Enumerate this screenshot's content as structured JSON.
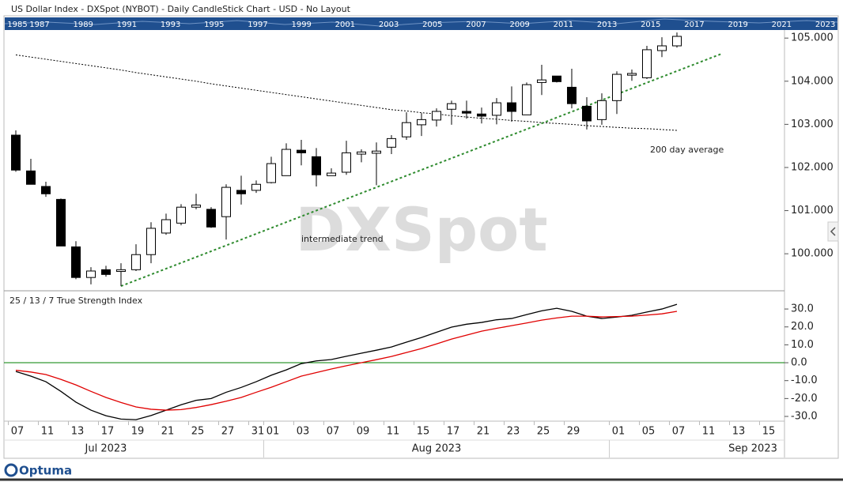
{
  "header": {
    "title": "US Dollar Index - DXSpot (NYBOT) - Daily CandleStick Chart - USD - No Layout"
  },
  "timeline_years": [
    "1985",
    "1987",
    "1989",
    "1991",
    "1993",
    "1995",
    "1997",
    "1999",
    "2001",
    "2003",
    "2005",
    "2007",
    "2009",
    "2011",
    "2013",
    "2015",
    "2017",
    "2019",
    "2021",
    "2023"
  ],
  "watermark": "DXSpot",
  "logo": "Optuma",
  "chart_data": [
    {
      "type": "candlestick",
      "categories": [
        "2023-07-07",
        "2023-07-10",
        "2023-07-11",
        "2023-07-12",
        "2023-07-13",
        "2023-07-14",
        "2023-07-17",
        "2023-07-18",
        "2023-07-19",
        "2023-07-20",
        "2023-07-21",
        "2023-07-24",
        "2023-07-25",
        "2023-07-26",
        "2023-07-27",
        "2023-07-28",
        "2023-07-31",
        "2023-08-01",
        "2023-08-02",
        "2023-08-03",
        "2023-08-04",
        "2023-08-07",
        "2023-08-08",
        "2023-08-09",
        "2023-08-10",
        "2023-08-11",
        "2023-08-14",
        "2023-08-15",
        "2023-08-16",
        "2023-08-17",
        "2023-08-18",
        "2023-08-21",
        "2023-08-22",
        "2023-08-23",
        "2023-08-24",
        "2023-08-25",
        "2023-08-28",
        "2023-08-29",
        "2023-08-30",
        "2023-08-31",
        "2023-09-01",
        "2023-09-04",
        "2023-09-05",
        "2023-09-06",
        "2023-09-07"
      ],
      "open": [
        102.75,
        101.92,
        101.56,
        101.26,
        100.16,
        99.45,
        99.63,
        99.59,
        99.63,
        99.98,
        100.48,
        100.71,
        101.08,
        101.03,
        100.86,
        101.47,
        101.47,
        101.65,
        101.81,
        102.4,
        102.25,
        101.81,
        101.89,
        102.31,
        102.33,
        102.47,
        102.71,
        102.99,
        103.1,
        103.35,
        103.3,
        103.24,
        103.21,
        103.5,
        103.22,
        103.97,
        104.12,
        103.86,
        103.42,
        103.11,
        103.55,
        104.14,
        104.08,
        104.71,
        104.82
      ],
      "high": [
        102.86,
        102.2,
        101.67,
        101.28,
        100.29,
        99.69,
        99.72,
        99.78,
        100.22,
        100.73,
        100.93,
        101.15,
        101.39,
        101.08,
        101.61,
        101.81,
        101.7,
        102.25,
        102.56,
        102.64,
        102.45,
        101.98,
        102.62,
        102.42,
        102.58,
        102.75,
        103.28,
        103.26,
        103.37,
        103.55,
        103.55,
        103.39,
        103.61,
        103.88,
        103.97,
        104.38,
        104.12,
        104.29,
        103.63,
        103.72,
        104.23,
        104.27,
        104.82,
        105.02,
        105.13
      ],
      "low": [
        101.9,
        101.61,
        101.32,
        100.18,
        99.41,
        99.29,
        99.47,
        99.25,
        99.6,
        99.78,
        100.44,
        100.66,
        101.03,
        100.6,
        100.33,
        101.14,
        101.41,
        101.63,
        101.81,
        102.05,
        101.56,
        101.81,
        101.83,
        102.12,
        101.59,
        102.31,
        102.64,
        102.73,
        102.95,
        102.99,
        103.13,
        103.02,
        103.0,
        103.06,
        103.22,
        103.68,
        103.97,
        103.37,
        102.88,
        102.99,
        103.24,
        104.01,
        104.05,
        104.56,
        104.78
      ],
      "close": [
        101.94,
        101.61,
        101.39,
        100.18,
        99.45,
        99.6,
        99.52,
        99.63,
        99.98,
        100.59,
        100.79,
        101.08,
        101.13,
        100.62,
        101.54,
        101.39,
        101.61,
        102.09,
        102.42,
        102.34,
        101.83,
        101.87,
        102.34,
        102.36,
        102.38,
        102.67,
        103.04,
        103.11,
        103.3,
        103.48,
        103.26,
        103.19,
        103.5,
        103.3,
        103.92,
        104.03,
        103.99,
        103.48,
        103.08,
        103.55,
        104.16,
        104.18,
        104.73,
        104.82,
        105.04
      ],
      "up_color": "#ffffff",
      "down_color": "#000000",
      "ylim": [
        99.16,
        105.15
      ],
      "yticks": [
        {
          "value": 100,
          "label": "100.000"
        },
        {
          "value": 101,
          "label": "101.000"
        },
        {
          "value": 102,
          "label": "102.000"
        },
        {
          "value": 103,
          "label": "103.000"
        },
        {
          "value": 104,
          "label": "104.000"
        },
        {
          "value": 105,
          "label": "105.000"
        }
      ],
      "x_ticks": [
        {
          "value": "2023-07-07",
          "label": "07"
        },
        {
          "value": "2023-07-11",
          "label": "11"
        },
        {
          "value": "2023-07-13",
          "label": "13"
        },
        {
          "value": "2023-07-17",
          "label": "17"
        },
        {
          "value": "2023-07-19",
          "label": "19"
        },
        {
          "value": "2023-07-21",
          "label": "21"
        },
        {
          "value": "2023-07-25",
          "label": "25"
        },
        {
          "value": "2023-07-27",
          "label": "27"
        },
        {
          "value": "2023-07-31",
          "label": "31"
        },
        {
          "value": "2023-08-01",
          "label": "01"
        },
        {
          "value": "2023-08-03",
          "label": "03"
        },
        {
          "value": "2023-08-07",
          "label": "07"
        },
        {
          "value": "2023-08-09",
          "label": "09"
        },
        {
          "value": "2023-08-11",
          "label": "11"
        },
        {
          "value": "2023-08-15",
          "label": "15"
        },
        {
          "value": "2023-08-17",
          "label": "17"
        },
        {
          "value": "2023-08-21",
          "label": "21"
        },
        {
          "value": "2023-08-23",
          "label": "23"
        },
        {
          "value": "2023-08-25",
          "label": "25"
        },
        {
          "value": "2023-08-29",
          "label": "29"
        },
        {
          "value": "2023-09-01",
          "label": "01"
        },
        {
          "value": "2023-09-05",
          "label": "05"
        },
        {
          "value": "2023-09-07",
          "label": "07"
        },
        {
          "value": "2023-09-11",
          "label": "11"
        },
        {
          "value": "2023-09-13",
          "label": "13"
        },
        {
          "value": "2023-09-15",
          "label": "15"
        }
      ],
      "month_ticks": [
        {
          "value": "2023-07",
          "label": "Jul 2023"
        },
        {
          "value": "2023-08",
          "label": "Aug 2023"
        },
        {
          "value": "2023-09",
          "label": "Sep 2023"
        }
      ],
      "lines": [
        {
          "name": "200 day average",
          "color": "#000000",
          "style": "dotted",
          "values": [
            104.61,
            104.56,
            104.51,
            104.46,
            104.41,
            104.36,
            104.31,
            104.26,
            104.2,
            104.15,
            104.1,
            104.05,
            104.0,
            103.94,
            103.89,
            103.84,
            103.79,
            103.74,
            103.69,
            103.64,
            103.59,
            103.54,
            103.49,
            103.44,
            103.39,
            103.34,
            103.31,
            103.27,
            103.24,
            103.2,
            103.17,
            103.14,
            103.12,
            103.09,
            103.07,
            103.04,
            103.02,
            103.0,
            102.97,
            102.95,
            102.93,
            102.91,
            102.9,
            102.88,
            102.86
          ]
        }
      ],
      "trend_lines": [
        {
          "name": "intermediate trend",
          "color": "#2e8b2e",
          "style": "dotted",
          "x": [
            "2023-07-18",
            "2023-09-12"
          ],
          "values": [
            99.25,
            104.64
          ]
        }
      ]
    },
    {
      "type": "line",
      "title": "25 / 13 / 7 True Strength Index",
      "series": [
        {
          "color": "#000000",
          "values": [
            -4.9,
            -7.5,
            -10.6,
            -16,
            -22,
            -26.5,
            -29.6,
            -31.5,
            -31.8,
            -29.5,
            -26.5,
            -23.5,
            -21,
            -20,
            -16.5,
            -13.8,
            -10.6,
            -7,
            -4,
            -0.5,
            1,
            1.8,
            3.6,
            5.3,
            7,
            8.8,
            11.5,
            14.1,
            17,
            19.9,
            21.5,
            22.5,
            24,
            24.7,
            26.9,
            29,
            30.4,
            28.7,
            26,
            24.7,
            25.5,
            26.5,
            28.3,
            30,
            32.6
          ]
        },
        {
          "color": "#e00000",
          "values": [
            -4.2,
            -5.2,
            -6.6,
            -9.3,
            -12.4,
            -16,
            -19.4,
            -22.2,
            -24.7,
            -26,
            -26.5,
            -26.2,
            -25,
            -23.4,
            -21.5,
            -19.4,
            -16.5,
            -13.7,
            -10.6,
            -7.5,
            -5.5,
            -3.5,
            -1.7,
            0,
            1.7,
            3.5,
            5.7,
            7.9,
            10.5,
            13.2,
            15.4,
            17.6,
            19.2,
            20.7,
            22.2,
            23.8,
            25,
            26,
            26,
            25.6,
            25.8,
            26,
            26.6,
            27.3,
            28.7
          ]
        }
      ],
      "reference_line": {
        "value": 0,
        "color": "#008000"
      },
      "ylim": [
        -32.2,
        39.3
      ],
      "yticks": [
        {
          "value": -30,
          "label": "-30.0"
        },
        {
          "value": -20,
          "label": "-20.0"
        },
        {
          "value": -10,
          "label": "-10.0"
        },
        {
          "value": 0,
          "label": "0.0"
        },
        {
          "value": 10,
          "label": "10.0"
        },
        {
          "value": 20,
          "label": "20.0"
        },
        {
          "value": 30,
          "label": "30.0"
        }
      ]
    }
  ]
}
